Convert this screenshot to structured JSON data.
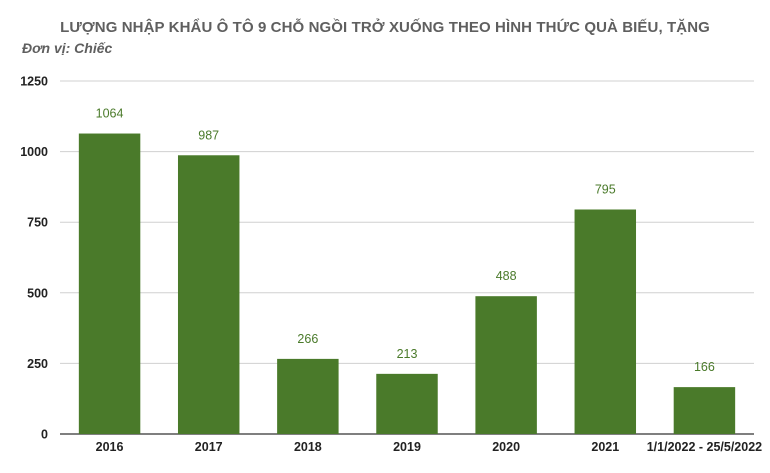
{
  "chart_data": {
    "type": "bar",
    "title": "LƯỢNG NHẬP KHẨU Ô TÔ 9 CHỖ NGỒI TRỞ XUỐNG THEO HÌNH THỨC QUÀ BIẾU, TẶNG",
    "subtitle": "Đơn vị: Chiếc",
    "categories": [
      "2016",
      "2017",
      "2018",
      "2019",
      "2020",
      "2021",
      "1/1/2022 - 25/5/2022"
    ],
    "values": [
      1064,
      987,
      266,
      213,
      488,
      795,
      166
    ],
    "data_labels": [
      "1064",
      "987",
      "266",
      "213",
      "488",
      "795",
      "166"
    ],
    "yticks": [
      0,
      250,
      500,
      750,
      1000,
      1250
    ],
    "ytick_labels": [
      "0",
      "250",
      "500",
      "750",
      "1000",
      "1250"
    ],
    "ylim": [
      0,
      1250
    ],
    "grid": true,
    "legend": "none",
    "bar_color": "#4a7a2a",
    "label_color": "#4a7a2a"
  }
}
